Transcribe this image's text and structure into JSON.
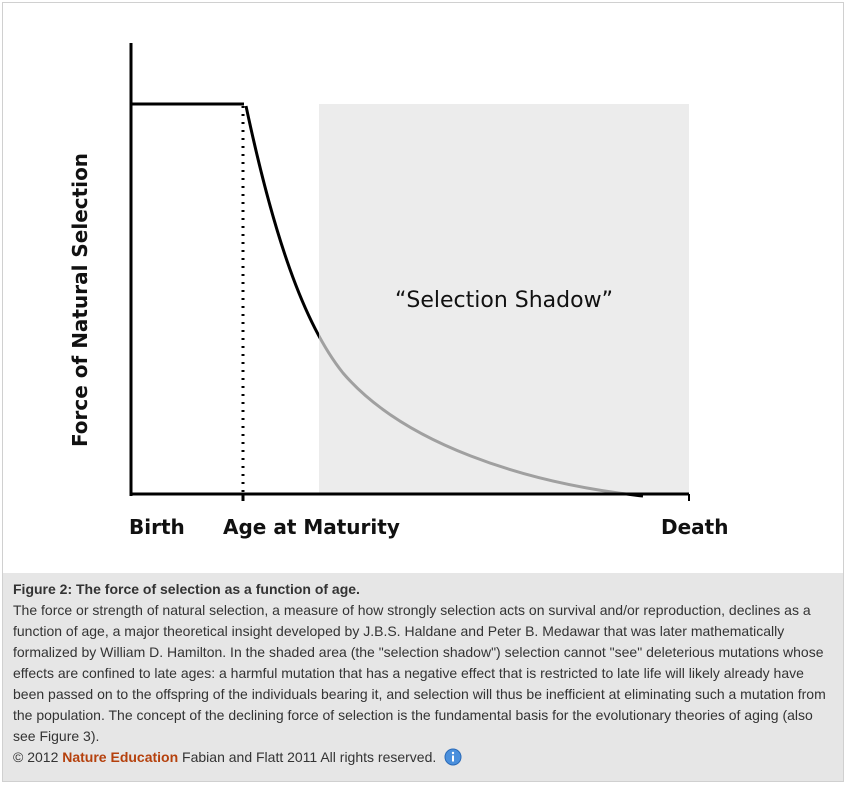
{
  "figure": {
    "y_axis_label": "Force of Natural Selection",
    "x_labels": [
      "Birth",
      "Age at Maturity",
      "Death"
    ],
    "shadow_label": "“Selection Shadow”"
  },
  "caption": {
    "title": "Figure 2: The force of selection as a function of age.",
    "text": "The force or strength of natural selection, a measure of how strongly selection acts on survival and/or reproduction, declines as a function of age, a major theoretical insight developed by J.B.S. Haldane and Peter B. Medawar that was later mathematically formalized by William D. Hamilton. In the shaded area (the \"selection shadow\") selection cannot \"see\" deleterious mutations whose effects are confined to late ages: a harmful mutation that has a negative effect that is restricted to late life will likely already have been passed on to the offspring of the individuals bearing it, and selection will thus be inefficient at eliminating such a mutation from the population. The concept of the declining force of selection is the fundamental basis for the evolutionary theories of aging (also see Figure 3).",
    "copyright": {
      "year": "© 2012",
      "publisher": "Nature Education",
      "rights": "Fabian and Flatt 2011 All rights reserved."
    }
  }
}
